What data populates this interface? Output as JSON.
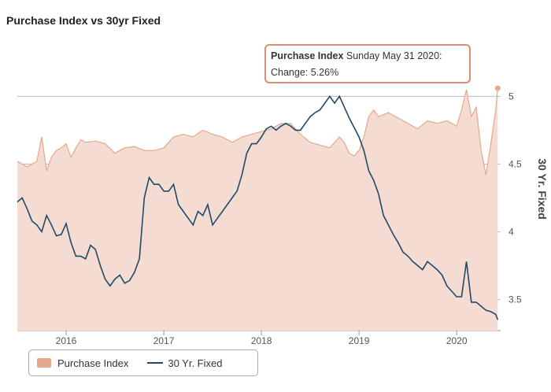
{
  "title": "Purchase Index vs 30yr Fixed",
  "tooltip": {
    "series_name": "Purchase Index",
    "date": "Sunday May 31 2020:",
    "change_label": "Change:",
    "change_value": "5.26%"
  },
  "legend": {
    "purchase_label": "Purchase Index",
    "fixed_label": "30 Yr. Fixed"
  },
  "colors": {
    "area_fill": "#f5dcd2",
    "area_line": "#e4a88a",
    "fixed_line": "#1e4a66",
    "grid": "#bbbbbb"
  },
  "chart_data": {
    "type": "area",
    "right_axis_title": "30 Yr. Fixed",
    "x_ticks": [
      "2016",
      "2017",
      "2018",
      "2019",
      "2020"
    ],
    "y_ticks": [
      3.5,
      4,
      4.5,
      5
    ],
    "xlim": [
      2015.5,
      2020.45
    ],
    "ylim": [
      3.27,
      5.45
    ],
    "series": [
      {
        "name": "Purchase Index",
        "kind": "area",
        "x": [
          2015.5,
          2015.55,
          2015.6,
          2015.65,
          2015.7,
          2015.75,
          2015.8,
          2015.85,
          2015.9,
          2015.95,
          2016.0,
          2016.05,
          2016.1,
          2016.15,
          2016.2,
          2016.3,
          2016.4,
          2016.5,
          2016.6,
          2016.7,
          2016.8,
          2016.9,
          2017.0,
          2017.1,
          2017.2,
          2017.3,
          2017.4,
          2017.5,
          2017.6,
          2017.7,
          2017.8,
          2017.9,
          2018.0,
          2018.1,
          2018.2,
          2018.3,
          2018.4,
          2018.5,
          2018.6,
          2018.7,
          2018.8,
          2018.85,
          2018.9,
          2018.95,
          2019.0,
          2019.05,
          2019.1,
          2019.15,
          2019.2,
          2019.3,
          2019.4,
          2019.5,
          2019.6,
          2019.7,
          2019.8,
          2019.9,
          2020.0,
          2020.05,
          2020.1,
          2020.15,
          2020.2,
          2020.25,
          2020.3,
          2020.35,
          2020.4,
          2020.42
        ],
        "values": [
          4.52,
          4.5,
          4.48,
          4.5,
          4.52,
          4.7,
          4.45,
          4.55,
          4.6,
          4.62,
          4.65,
          4.55,
          4.62,
          4.68,
          4.66,
          4.67,
          4.65,
          4.58,
          4.62,
          4.63,
          4.6,
          4.6,
          4.62,
          4.7,
          4.72,
          4.7,
          4.75,
          4.72,
          4.7,
          4.66,
          4.7,
          4.72,
          4.74,
          4.76,
          4.8,
          4.8,
          4.72,
          4.66,
          4.64,
          4.62,
          4.7,
          4.66,
          4.58,
          4.56,
          4.6,
          4.7,
          4.85,
          4.9,
          4.85,
          4.88,
          4.84,
          4.8,
          4.76,
          4.82,
          4.8,
          4.82,
          4.78,
          4.9,
          5.05,
          4.85,
          4.92,
          4.6,
          4.42,
          4.65,
          4.9,
          5.06
        ]
      },
      {
        "name": "30 Yr. Fixed",
        "kind": "line",
        "x": [
          2015.5,
          2015.55,
          2015.6,
          2015.65,
          2015.7,
          2015.75,
          2015.8,
          2015.85,
          2015.9,
          2015.95,
          2016.0,
          2016.05,
          2016.1,
          2016.15,
          2016.2,
          2016.25,
          2016.3,
          2016.35,
          2016.4,
          2016.45,
          2016.5,
          2016.55,
          2016.6,
          2016.65,
          2016.7,
          2016.75,
          2016.8,
          2016.85,
          2016.9,
          2016.95,
          2017.0,
          2017.05,
          2017.1,
          2017.15,
          2017.2,
          2017.25,
          2017.3,
          2017.35,
          2017.4,
          2017.45,
          2017.5,
          2017.55,
          2017.6,
          2017.65,
          2017.7,
          2017.75,
          2017.8,
          2017.85,
          2017.9,
          2017.95,
          2018.0,
          2018.05,
          2018.1,
          2018.15,
          2018.2,
          2018.25,
          2018.3,
          2018.35,
          2018.4,
          2018.45,
          2018.5,
          2018.55,
          2018.6,
          2018.65,
          2018.7,
          2018.75,
          2018.8,
          2018.85,
          2018.9,
          2018.95,
          2019.0,
          2019.05,
          2019.1,
          2019.15,
          2019.2,
          2019.25,
          2019.3,
          2019.35,
          2019.4,
          2019.45,
          2019.5,
          2019.55,
          2019.6,
          2019.65,
          2019.7,
          2019.75,
          2019.8,
          2019.85,
          2019.9,
          2019.95,
          2020.0,
          2020.05,
          2020.1,
          2020.15,
          2020.2,
          2020.25,
          2020.3,
          2020.35,
          2020.4,
          2020.42
        ],
        "values": [
          4.22,
          4.25,
          4.17,
          4.08,
          4.05,
          4.0,
          4.12,
          4.05,
          3.97,
          3.98,
          4.06,
          3.92,
          3.82,
          3.82,
          3.8,
          3.9,
          3.87,
          3.75,
          3.65,
          3.6,
          3.65,
          3.68,
          3.62,
          3.64,
          3.7,
          3.8,
          4.25,
          4.4,
          4.35,
          4.35,
          4.3,
          4.3,
          4.35,
          4.2,
          4.15,
          4.1,
          4.05,
          4.15,
          4.12,
          4.2,
          4.05,
          4.1,
          4.15,
          4.2,
          4.25,
          4.3,
          4.42,
          4.58,
          4.65,
          4.65,
          4.7,
          4.76,
          4.78,
          4.75,
          4.78,
          4.8,
          4.78,
          4.75,
          4.75,
          4.8,
          4.85,
          4.88,
          4.9,
          4.95,
          5.0,
          4.95,
          5.0,
          4.92,
          4.84,
          4.77,
          4.7,
          4.6,
          4.45,
          4.38,
          4.28,
          4.12,
          4.05,
          3.98,
          3.92,
          3.85,
          3.82,
          3.78,
          3.75,
          3.72,
          3.78,
          3.75,
          3.72,
          3.68,
          3.6,
          3.56,
          3.52,
          3.52,
          3.78,
          3.48,
          3.48,
          3.45,
          3.42,
          3.41,
          3.39,
          3.35
        ]
      }
    ]
  }
}
